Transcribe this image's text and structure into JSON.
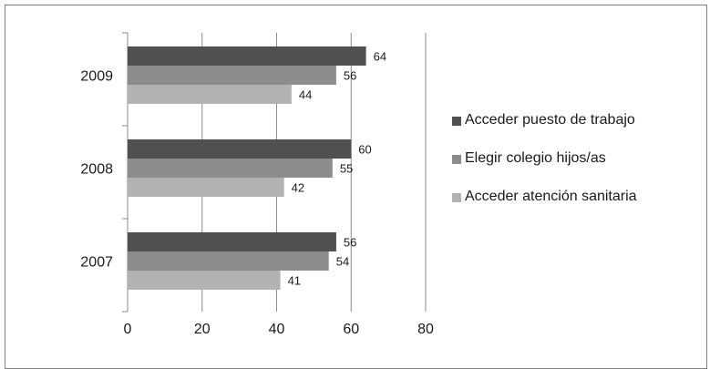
{
  "chart_data": {
    "type": "bar",
    "orientation": "horizontal",
    "categories": [
      "2009",
      "2008",
      "2007"
    ],
    "series": [
      {
        "name": "Acceder puesto de trabajo",
        "color": "#505050",
        "values": [
          64,
          60,
          56
        ]
      },
      {
        "name": "Elegir colegio hijos/as",
        "color": "#8c8c8c",
        "values": [
          56,
          55,
          54
        ]
      },
      {
        "name": "Acceder atención sanitaria",
        "color": "#b2b2b2",
        "values": [
          44,
          42,
          41
        ]
      }
    ],
    "xlim": [
      0,
      80
    ],
    "xticks": [
      "0",
      "20",
      "40",
      "60",
      "80"
    ],
    "grid": true,
    "legend_position": "right"
  },
  "legend": {
    "items": [
      {
        "label": "Acceder puesto de trabajo",
        "color": "#505050"
      },
      {
        "label": "Elegir colegio hijos/as",
        "color": "#8c8c8c"
      },
      {
        "label": "Acceder atención sanitaria",
        "color": "#b2b2b2"
      }
    ]
  }
}
